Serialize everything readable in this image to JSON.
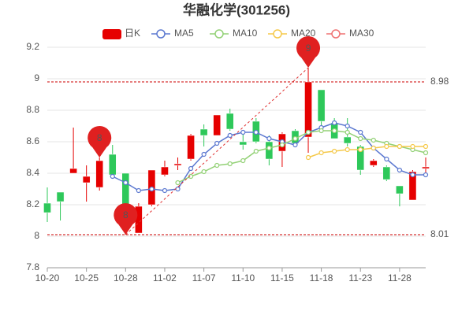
{
  "chart_data": {
    "type": "candlestick",
    "title": "华融化学(301256)",
    "candle_name": "日K",
    "categories": [
      "10-20",
      null,
      null,
      "10-25",
      null,
      null,
      "10-28",
      null,
      null,
      "11-02",
      null,
      null,
      "11-07",
      null,
      null,
      "11-10",
      null,
      null,
      "11-15",
      null,
      null,
      "11-18",
      null,
      null,
      "11-23",
      null,
      null,
      "11-28",
      null,
      null
    ],
    "open": [
      8.21,
      8.28,
      8.4,
      8.34,
      8.31,
      8.52,
      8.4,
      8.02,
      8.2,
      8.39,
      8.45,
      8.49,
      8.68,
      8.64,
      8.78,
      8.6,
      8.73,
      8.6,
      8.54,
      8.67,
      8.63,
      8.93,
      8.72,
      8.63,
      8.57,
      8.45,
      8.44,
      8.32,
      8.23,
      8.43
    ],
    "high": [
      8.31,
      8.28,
      8.69,
      8.45,
      8.5,
      8.58,
      8.4,
      8.21,
      8.42,
      8.48,
      8.5,
      8.65,
      8.71,
      8.77,
      8.81,
      8.67,
      8.75,
      8.64,
      8.66,
      8.68,
      9.07,
      8.93,
      8.75,
      8.75,
      8.58,
      8.49,
      8.45,
      8.32,
      8.42,
      8.5
    ],
    "low": [
      8.09,
      8.1,
      8.4,
      8.22,
      8.29,
      8.39,
      8.01,
      8.02,
      8.19,
      8.38,
      8.42,
      8.48,
      8.57,
      8.64,
      8.67,
      8.55,
      8.59,
      8.45,
      8.44,
      8.58,
      8.53,
      8.7,
      8.62,
      8.57,
      8.39,
      8.44,
      8.35,
      8.19,
      8.23,
      8.39
    ],
    "close": [
      8.15,
      8.22,
      8.43,
      8.38,
      8.48,
      8.39,
      8.16,
      8.19,
      8.42,
      8.44,
      8.46,
      8.64,
      8.64,
      8.77,
      8.68,
      8.58,
      8.6,
      8.49,
      8.65,
      8.59,
      8.98,
      8.73,
      8.62,
      8.59,
      8.42,
      8.48,
      8.36,
      8.27,
      8.41,
      8.44
    ],
    "up_color": "#e60000",
    "down_color": "#2ec85a",
    "series": [
      {
        "name": "MA5",
        "color": "#5b78d0",
        "values": [
          null,
          null,
          null,
          null,
          null,
          8.38,
          8.34,
          8.29,
          8.3,
          8.29,
          8.3,
          8.43,
          8.52,
          8.59,
          8.64,
          8.66,
          8.66,
          8.62,
          8.6,
          8.58,
          8.66,
          8.69,
          8.72,
          8.7,
          8.66,
          8.56,
          8.49,
          8.42,
          8.39,
          8.39
        ]
      },
      {
        "name": "MA10",
        "color": "#93d176",
        "values": [
          null,
          null,
          null,
          null,
          null,
          null,
          null,
          null,
          null,
          null,
          8.34,
          8.38,
          8.41,
          8.45,
          8.46,
          8.48,
          8.54,
          8.56,
          8.58,
          8.62,
          8.66,
          8.67,
          8.67,
          8.66,
          8.62,
          8.61,
          8.59,
          8.57,
          8.55,
          8.53
        ]
      },
      {
        "name": "MA20",
        "color": "#f5c94a",
        "values": [
          null,
          null,
          null,
          null,
          null,
          null,
          null,
          null,
          null,
          null,
          null,
          null,
          null,
          null,
          null,
          null,
          null,
          null,
          null,
          null,
          8.5,
          8.53,
          8.54,
          8.55,
          8.55,
          8.56,
          8.57,
          8.57,
          8.57,
          8.57
        ]
      },
      {
        "name": "MA30",
        "color": "#ef7272",
        "values": [
          null,
          null,
          null,
          null,
          null,
          null,
          null,
          null,
          null,
          null,
          null,
          null,
          null,
          null,
          null,
          null,
          null,
          null,
          null,
          null,
          null,
          null,
          null,
          null,
          null,
          null,
          null,
          null,
          null,
          null
        ]
      }
    ],
    "hlines": [
      8.98,
      8.01
    ],
    "pins": [
      {
        "label": "8",
        "index": 4,
        "value": 8.5
      },
      {
        "label": "8",
        "index": 6,
        "value": 8.01
      },
      {
        "label": "9",
        "index": 20,
        "value": 9.07
      }
    ],
    "ylim": [
      7.8,
      9.2
    ],
    "yticks": [
      7.8,
      8,
      8.2,
      8.4,
      8.6,
      8.8,
      9,
      9.2
    ],
    "grid": true
  }
}
